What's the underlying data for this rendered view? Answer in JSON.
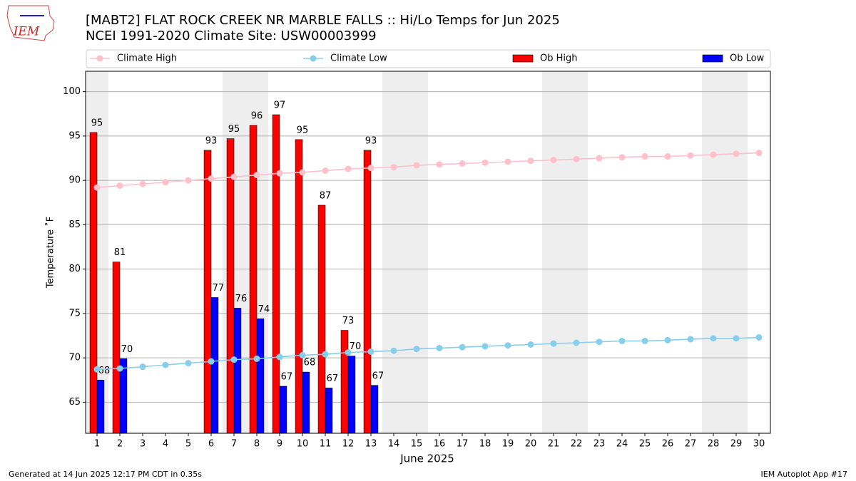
{
  "chart_data": {
    "type": "bar",
    "title": "[MABT2] FLAT ROCK CREEK NR MARBLE FALLS :: Hi/Lo Temps for Jun 2025",
    "subtitle": "NCEI 1991-2020 Climate Site: USW00003999",
    "logo": "IEM",
    "xlabel": "June 2025",
    "ylabel": "Temperature ˚F",
    "footer_left": "Generated at 14 Jun 2025 12:17 PM CDT in 0.35s",
    "footer_right": "IEM Autoplot App #17",
    "x": [
      1,
      2,
      3,
      4,
      5,
      6,
      7,
      8,
      9,
      10,
      11,
      12,
      13,
      14,
      15,
      16,
      17,
      18,
      19,
      20,
      21,
      22,
      23,
      24,
      25,
      26,
      27,
      28,
      29,
      30
    ],
    "xlim": [
      0.5,
      30.5
    ],
    "xticks": [
      1,
      2,
      3,
      4,
      5,
      6,
      7,
      8,
      9,
      10,
      11,
      12,
      13,
      14,
      15,
      16,
      17,
      18,
      19,
      20,
      21,
      22,
      23,
      24,
      25,
      26,
      27,
      28,
      29,
      30
    ],
    "ylim": [
      61.5,
      102.3
    ],
    "yticks": [
      65,
      70,
      75,
      80,
      85,
      90,
      95,
      100
    ],
    "grid": true,
    "shade_ranges": [
      [
        0.5,
        1.5
      ],
      [
        6.5,
        8.5
      ],
      [
        13.5,
        15.5
      ],
      [
        20.5,
        22.5
      ],
      [
        27.5,
        29.5
      ]
    ],
    "shade_color": "#eeeeee",
    "series": [
      {
        "name": "Climate High",
        "type": "line",
        "color": "#ffc0cb",
        "values": [
          89.2,
          89.4,
          89.6,
          89.8,
          90.0,
          90.2,
          90.4,
          90.6,
          90.8,
          90.9,
          91.1,
          91.3,
          91.4,
          91.5,
          91.7,
          91.8,
          91.9,
          92.0,
          92.1,
          92.2,
          92.3,
          92.4,
          92.5,
          92.6,
          92.7,
          92.7,
          92.8,
          92.9,
          93.0,
          93.1
        ]
      },
      {
        "name": "Climate Low",
        "type": "line",
        "color": "#87ceeb",
        "values": [
          68.7,
          68.8,
          69.0,
          69.2,
          69.4,
          69.6,
          69.8,
          69.9,
          70.1,
          70.3,
          70.4,
          70.6,
          70.7,
          70.8,
          71.0,
          71.1,
          71.2,
          71.3,
          71.4,
          71.5,
          71.6,
          71.7,
          71.8,
          71.9,
          71.9,
          72.0,
          72.1,
          72.2,
          72.2,
          72.3
        ]
      },
      {
        "name": "Ob High",
        "type": "bar",
        "color": "#ff0000",
        "offset": -1,
        "values": [
          95.4,
          80.8,
          null,
          null,
          null,
          93.4,
          94.7,
          96.2,
          97.4,
          94.6,
          87.2,
          73.1,
          93.4,
          null,
          null,
          null,
          null,
          null,
          null,
          null,
          null,
          null,
          null,
          null,
          null,
          null,
          null,
          null,
          null,
          null
        ],
        "value_labels": [
          "95",
          "81",
          null,
          null,
          null,
          "93",
          "95",
          "96",
          "97",
          "95",
          "87",
          "73",
          "93",
          null,
          null,
          null,
          null,
          null,
          null,
          null,
          null,
          null,
          null,
          null,
          null,
          null,
          null,
          null,
          null,
          null
        ]
      },
      {
        "name": "Ob Low",
        "type": "bar",
        "color": "#0000ff",
        "offset": 0,
        "values": [
          67.5,
          69.9,
          null,
          null,
          null,
          76.8,
          75.6,
          74.4,
          66.8,
          68.4,
          66.6,
          70.2,
          66.9,
          null,
          null,
          null,
          null,
          null,
          null,
          null,
          null,
          null,
          null,
          null,
          null,
          null,
          null,
          null,
          null,
          null
        ],
        "value_labels": [
          "68",
          "70",
          null,
          null,
          null,
          "77",
          "76",
          "74",
          "67",
          "68",
          "67",
          "70",
          "67",
          null,
          null,
          null,
          null,
          null,
          null,
          null,
          null,
          null,
          null,
          null,
          null,
          null,
          null,
          null,
          null,
          null
        ]
      }
    ]
  }
}
